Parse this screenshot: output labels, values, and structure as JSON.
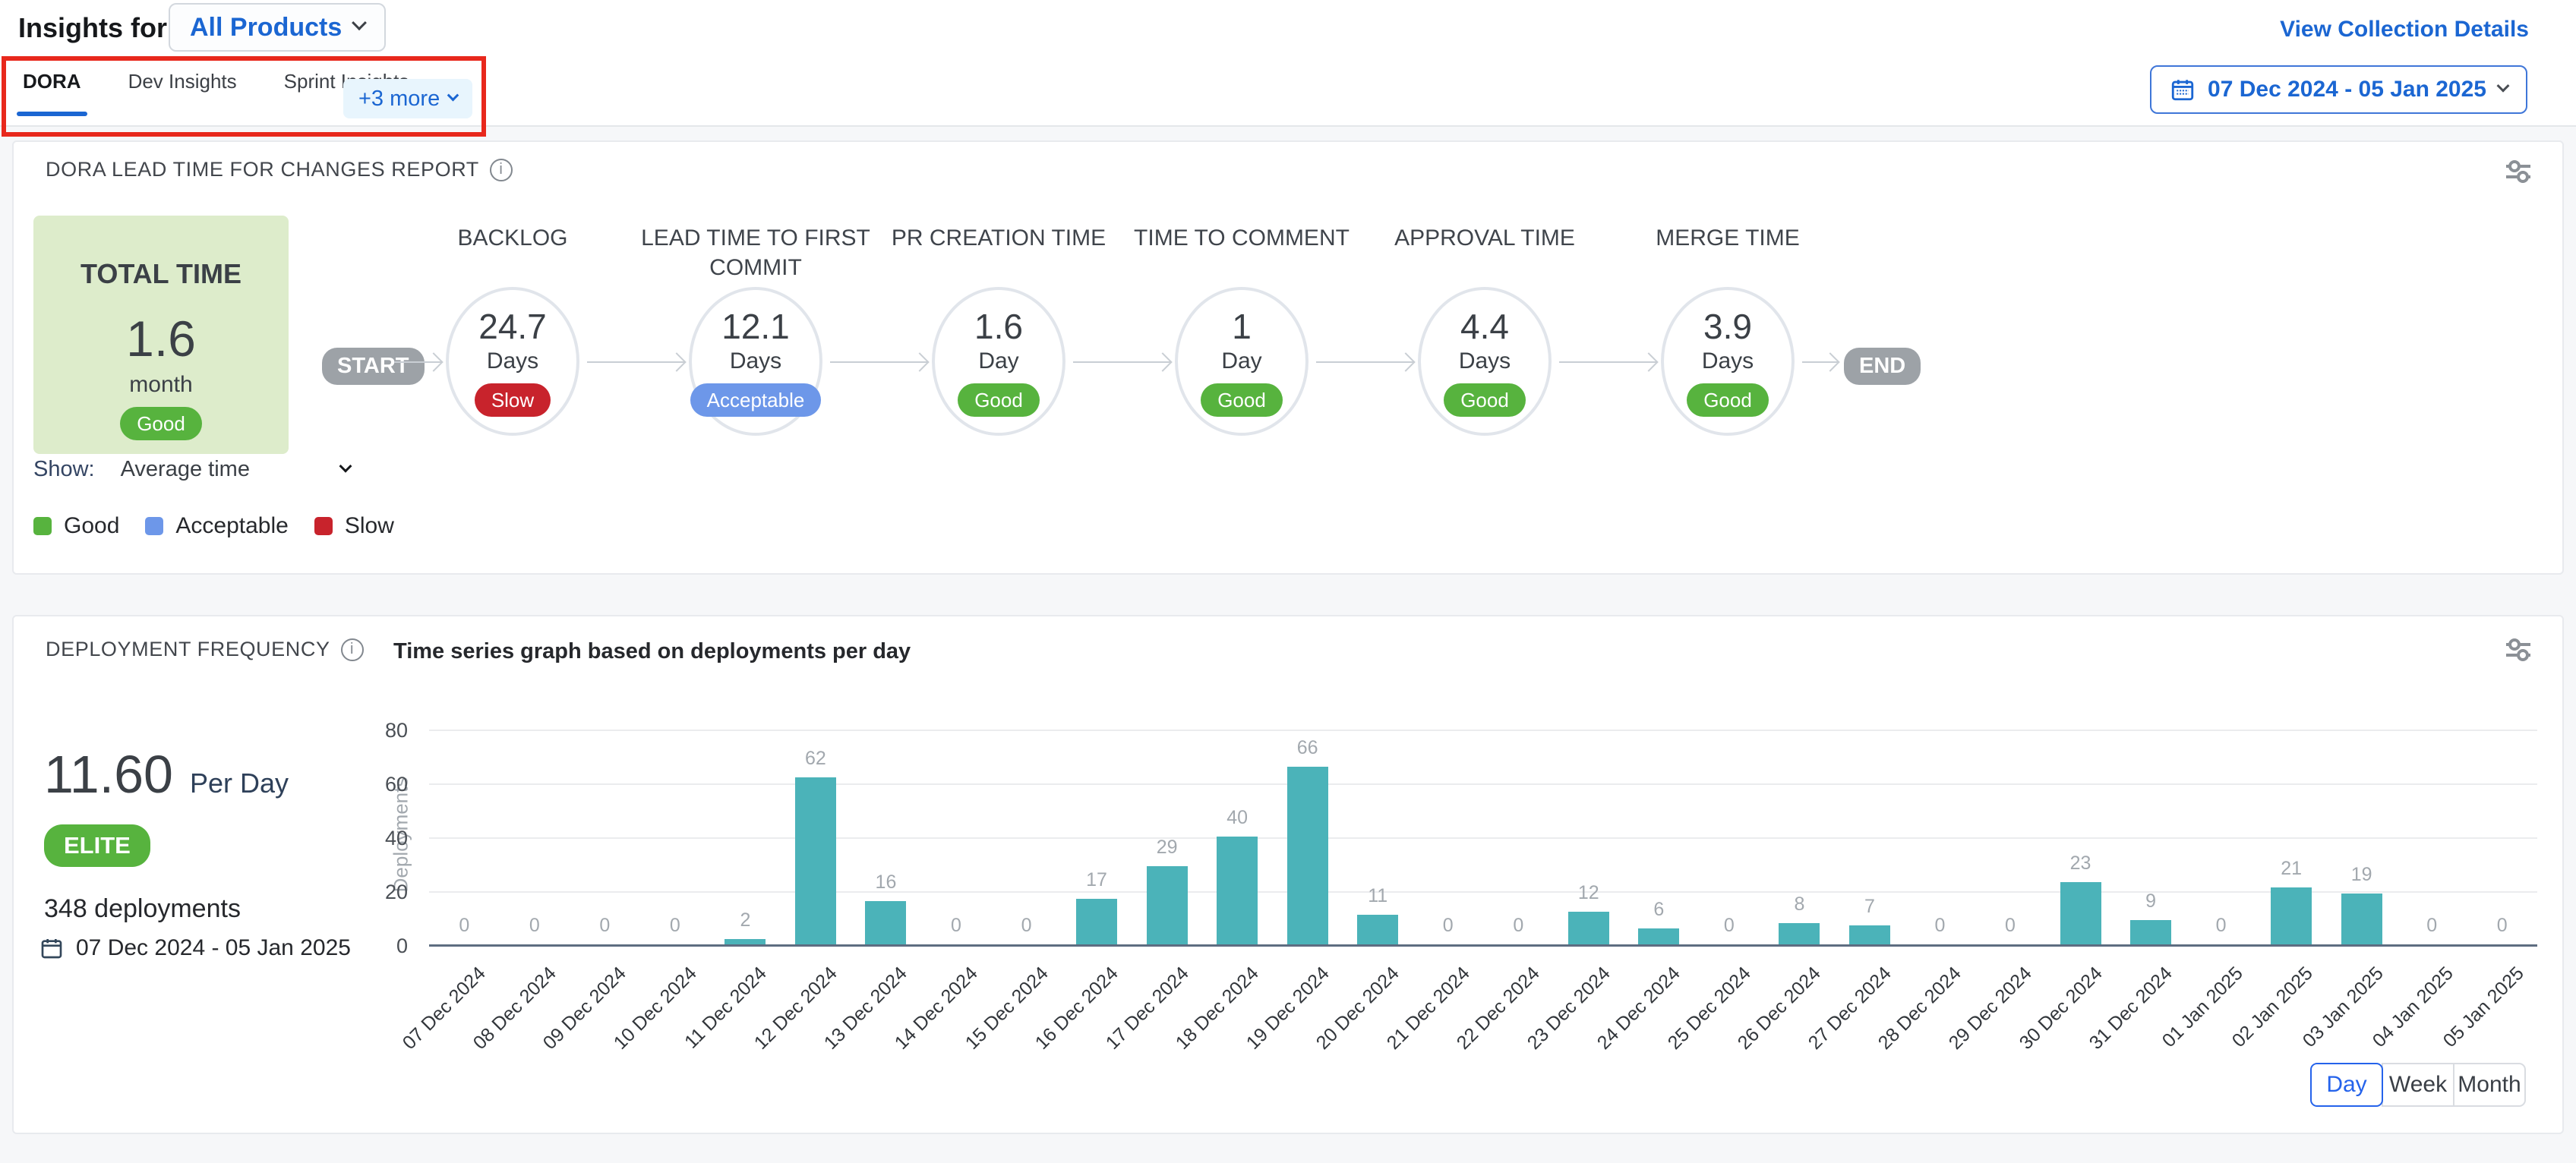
{
  "header": {
    "title": "Insights for",
    "product_selector": "All Products",
    "view_collection_details": "View Collection Details",
    "tabs": [
      {
        "label": "DORA",
        "active": true
      },
      {
        "label": "Dev Insights",
        "active": false
      },
      {
        "label": "Sprint Insights",
        "active": false
      }
    ],
    "more_label": "+3 more",
    "date_range": "07 Dec 2024 - 05 Jan 2025"
  },
  "lead_time": {
    "title": "DORA LEAD TIME FOR CHANGES REPORT",
    "total": {
      "label": "TOTAL TIME",
      "value": "1.6",
      "unit": "month",
      "status": "Good"
    },
    "start_label": "START",
    "end_label": "END",
    "stages": [
      {
        "name": "BACKLOG",
        "value": "24.7",
        "unit": "Days",
        "status": "Slow"
      },
      {
        "name": "LEAD TIME TO FIRST COMMIT",
        "value": "12.1",
        "unit": "Days",
        "status": "Acceptable"
      },
      {
        "name": "PR CREATION TIME",
        "value": "1.6",
        "unit": "Day",
        "status": "Good"
      },
      {
        "name": "TIME TO COMMENT",
        "value": "1",
        "unit": "Day",
        "status": "Good"
      },
      {
        "name": "APPROVAL TIME",
        "value": "4.4",
        "unit": "Days",
        "status": "Good"
      },
      {
        "name": "MERGE TIME",
        "value": "3.9",
        "unit": "Days",
        "status": "Good"
      }
    ],
    "show_label": "Show:",
    "show_value": "Average time",
    "legend": [
      {
        "label": "Good",
        "color": "#57b33e"
      },
      {
        "label": "Acceptable",
        "color": "#6d97e9"
      },
      {
        "label": "Slow",
        "color": "#c8232c"
      }
    ]
  },
  "deployment": {
    "title": "DEPLOYMENT FREQUENCY",
    "rate_value": "11.60",
    "rate_unit": "Per Day",
    "tier_badge": "ELITE",
    "total_label": "348 deployments",
    "date_range": "07 Dec 2024 - 05 Jan 2025",
    "granularity": [
      {
        "label": "Day",
        "active": true
      },
      {
        "label": "Week",
        "active": false
      },
      {
        "label": "Month",
        "active": false
      }
    ]
  },
  "chart_data": {
    "type": "bar",
    "title": "Time series graph based on deployments per day",
    "xlabel": "",
    "ylabel": "Deployments",
    "ylim": [
      0,
      80
    ],
    "yticks": [
      0,
      20,
      40,
      60,
      80
    ],
    "grid": true,
    "legend_position": "none",
    "bar_color": "#4bb3b9",
    "categories": [
      "07 Dec 2024",
      "08 Dec 2024",
      "09 Dec 2024",
      "10 Dec 2024",
      "11 Dec 2024",
      "12 Dec 2024",
      "13 Dec 2024",
      "14 Dec 2024",
      "15 Dec 2024",
      "16 Dec 2024",
      "17 Dec 2024",
      "18 Dec 2024",
      "19 Dec 2024",
      "20 Dec 2024",
      "21 Dec 2024",
      "22 Dec 2024",
      "23 Dec 2024",
      "24 Dec 2024",
      "25 Dec 2024",
      "26 Dec 2024",
      "27 Dec 2024",
      "28 Dec 2024",
      "29 Dec 2024",
      "30 Dec 2024",
      "31 Dec 2024",
      "01 Jan 2025",
      "02 Jan 2025",
      "03 Jan 2025",
      "04 Jan 2025",
      "05 Jan 2025"
    ],
    "values": [
      0,
      0,
      0,
      0,
      2,
      62,
      16,
      0,
      0,
      17,
      29,
      40,
      66,
      11,
      0,
      0,
      12,
      6,
      0,
      8,
      7,
      0,
      0,
      23,
      9,
      0,
      21,
      19,
      0,
      0
    ]
  },
  "colors": {
    "accent_blue": "#1b66d2",
    "toggle_blue": "#2563eb",
    "annotation_red": "#e8281c",
    "bar_teal": "#4bb3b9",
    "total_card_bg": "#ddeccb",
    "start_end_gray": "#9da2a7",
    "status": {
      "Good": "#57b33e",
      "Acceptable": "#6d97e9",
      "Slow": "#c8232c"
    }
  }
}
